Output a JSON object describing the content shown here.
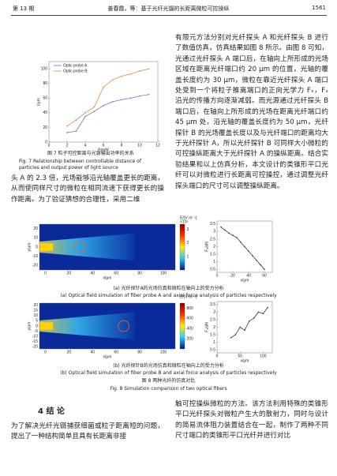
{
  "header": {
    "issue": "第 13 期",
    "running_title": "姜春霞，等：基于光纤光镊的长距离微粒可控操纵",
    "page": "1561"
  },
  "figure7": {
    "chart_data": {
      "type": "line",
      "x_label": "P/mW",
      "y_label": "l/μm",
      "xlim": [
        0,
        12
      ],
      "ylim": [
        0,
        110
      ],
      "xticks": [
        0,
        2,
        4,
        6,
        8,
        10,
        12
      ],
      "yticks": [
        0,
        20,
        40,
        60,
        80,
        100
      ],
      "x": [
        2,
        3,
        4,
        5,
        6,
        7,
        8,
        9,
        10,
        11
      ],
      "series": [
        {
          "name": "Optic probe A",
          "color": "#5b7fd0",
          "values": [
            13,
            15,
            35,
            42,
            50,
            55,
            58,
            60,
            63,
            65
          ]
        },
        {
          "name": "Optic probe B",
          "color": "#e8874a",
          "values": [
            22,
            30,
            40,
            48,
            75,
            85,
            90,
            93,
            97,
            100
          ]
        }
      ]
    },
    "caption_cn": "图 7  粒子可控距离与光源输出功率的关系",
    "caption_en": "Fig. 7  Relationship between controllable distance of particles and output power of light source"
  },
  "paragraph_left_1": "头 A 的 2.3 倍，光场能够沿光轴覆盖更长的距离，从而使同样尺寸的微粒在相同流速下获得更长的操作距离。为了验证猜想的合理性，采用二维",
  "paragraph_right_1": "有限元方法分别对光纤探头 A 和光纤探头 B 进行了数值仿真，仿真结果如图 8 所示。由图 8 可知，光通过光纤探头 A 端口后，在轴向上所形成的光场区域在距离光纤端口约 20 μm 的位置，光轴的覆盖长度约为 30 μm，微粒在靠近光纤探头 A 端口处受到一个将粒子推离端口的正向光学力 Fₓ，Fₓ 沿光的传播方向逐渐减弱。而光源通过光纤探头 B 端口后，在轴向上所形成的光场在距离光纤端口约 45 μm 处，沿光轴的覆盖长度约为 50 μm，光纤探针 B 的光场覆盖长度以及与光纤端口的距离均大于光纤探针 A，所以光纤探针 B 可同样大小微粒的可控操纵距离大于光纤探针 A 的操纵距离。结合实验结果和以上仿真分析，本文设计的类锥形平口光纤可以对微粒进行长距离可控操控，通过调整光纤探头端口的尺寸可以调整操纵距离。",
  "figure8": {
    "field_a": {
      "chart_data": {
        "type": "heatmap",
        "x_label": "x/μm",
        "y_label": "y/μm",
        "xlim": [
          -5,
          110
        ],
        "ylim": [
          -25,
          25
        ],
        "xticks": [
          0,
          20,
          40,
          60,
          80,
          100
        ],
        "yticks": [
          20,
          10,
          0,
          -10,
          -20
        ],
        "colorbar": {
          "label": "E/(V·m⁻¹)",
          "scale_label": "×10⁵",
          "lim": [
            0,
            3.4
          ],
          "ticks": [
            3,
            2,
            1
          ]
        }
      }
    },
    "force_a": {
      "chart_data": {
        "type": "line",
        "x_label": "x/μm",
        "y_label": "Fₓ/pN",
        "xlim": [
          0,
          70
        ],
        "ylim": [
          0.3,
          3.7
        ],
        "xticks": [
          0,
          20,
          40,
          60
        ],
        "yticks": [
          3.5,
          3,
          2.5,
          2,
          1.5,
          1,
          0.5
        ],
        "x": [
          5,
          10,
          15,
          20,
          25,
          30,
          35,
          40,
          45,
          50,
          55,
          60
        ],
        "series": [
          {
            "color": "#333333",
            "values": [
              3.3,
              3.1,
              2.9,
              2.75,
              2.6,
              2.3,
              2.0,
              1.7,
              1.4,
              1.1,
              0.8,
              0.5
            ]
          }
        ]
      }
    },
    "caption_a_cn": "(a) 光纤探针A的光场仿真和微粒在轴向上的受力分析",
    "caption_a_en": "(a) Optical field simulation of fiber probe A and axial force analysis of particles respectively",
    "field_b": {
      "chart_data": {
        "type": "heatmap",
        "x_label": "x/μm",
        "y_label": "y/μm",
        "xlim": [
          -5,
          110
        ],
        "ylim": [
          -22,
          22
        ],
        "xticks": [
          0,
          20,
          40,
          60,
          80,
          100
        ],
        "yticks": [
          20,
          15,
          10,
          5,
          0,
          -5,
          -10,
          -15,
          -20
        ],
        "colorbar": {
          "label": "E/(V·m⁻¹)",
          "lim": [
            0,
            900
          ],
          "ticks": [
            800,
            600,
            400,
            200
          ]
        }
      }
    },
    "force_b": {
      "chart_data": {
        "type": "line",
        "x_label": "x/μm",
        "y_label": "Fₓ/pN",
        "xlim": [
          0,
          120
        ],
        "ylim": [
          0.3,
          3.7
        ],
        "xticks": [
          0,
          50,
          100
        ],
        "yticks": [
          3.5,
          3,
          2.5,
          2,
          1.5,
          1,
          0.5
        ],
        "x": [
          30,
          40,
          50,
          60,
          70,
          80,
          90,
          100,
          110
        ],
        "series": [
          {
            "color": "#333333",
            "values": [
              1.3,
              1.5,
              2.0,
              1.8,
              2.4,
              2.6,
              3.0,
              2.9,
              3.3
            ]
          }
        ]
      }
    },
    "caption_b_cn": "(b) 光纤探针B的光场仿真和微粒在轴向上的受力分析",
    "caption_b_en": "(b) Optical field simulation of fiber probe B and axial force analysis of particles respectively",
    "caption_cn": "图 8  两种光纤的仿真对比",
    "caption_en": "Fig. 8  Simulation comparison of two optical fibers"
  },
  "section4": {
    "title": "4  结  论",
    "paragraph_left": "为了解决光纤光镊捕获细菌或粒子距离短的问题，提出了一种结构简单且具有长距离非接",
    "paragraph_right": "触可控操纵微粒的方法。该方法利用特殊的类锥形平口光纤探头对微粒产生大的散射力，同时与设计的简易流体阻力装置结合在一起，制作了两种不同尺寸端口的类锥形平口光纤并进行对比"
  }
}
